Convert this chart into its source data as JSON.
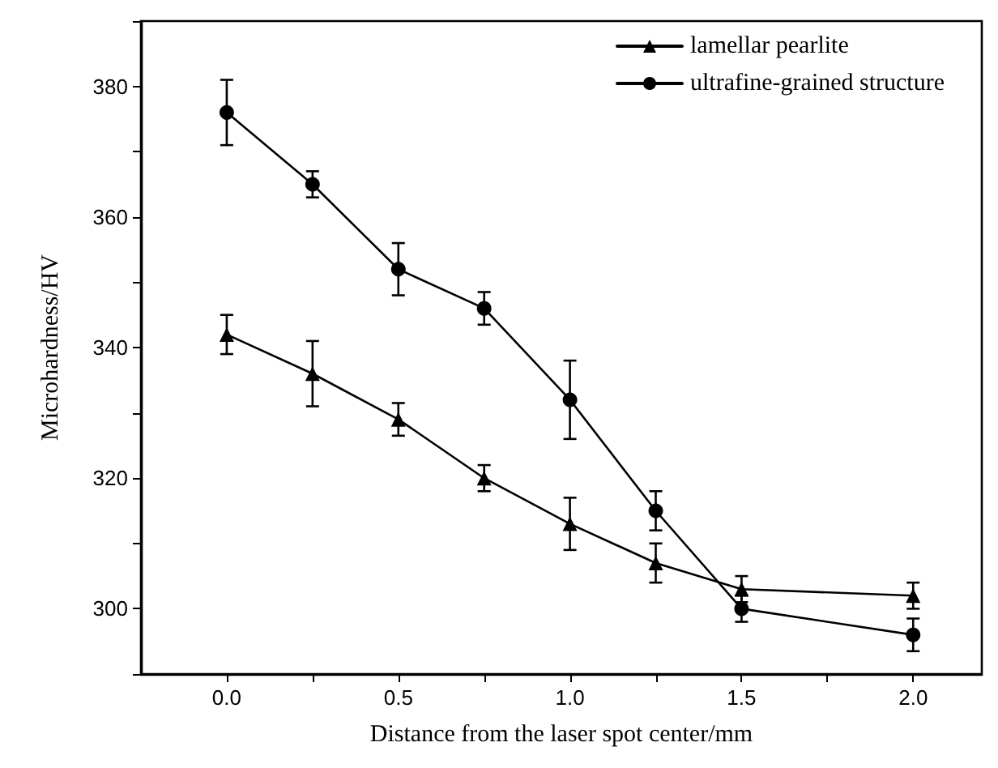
{
  "chart_data": {
    "type": "line",
    "xlabel": "Distance from the laser spot center/mm",
    "ylabel": "Microhardness/HV",
    "x": [
      0,
      0.25,
      0.5,
      0.75,
      1.0,
      1.25,
      1.5,
      2.0
    ],
    "series": [
      {
        "name": "lamellar pearlite",
        "color": "#000000",
        "marker": "triangle",
        "values": [
          342,
          336,
          329,
          320,
          313,
          307,
          303,
          302
        ],
        "errors": [
          3,
          5,
          2.5,
          2,
          4,
          3,
          2,
          2
        ]
      },
      {
        "name": "ultrafine-grained structure",
        "color": "#000000",
        "marker": "circle",
        "values": [
          376,
          365,
          352,
          346,
          332,
          315,
          300,
          296
        ],
        "errors": [
          5,
          2,
          4,
          2.5,
          6,
          3,
          2,
          2.5
        ]
      }
    ],
    "xlim": [
      -0.25,
      2.2
    ],
    "xticks": [
      {
        "value": 0,
        "label": "0.0"
      },
      {
        "value": 0.25,
        "label": null
      },
      {
        "value": 0.5,
        "label": "0.5"
      },
      {
        "value": 0.75,
        "label": null
      },
      {
        "value": 1,
        "label": "1.0"
      },
      {
        "value": 1.25,
        "label": null
      },
      {
        "value": 1.5,
        "label": "1.5"
      },
      {
        "value": 1.75,
        "label": null
      },
      {
        "value": 2,
        "label": "2.0"
      }
    ],
    "ylim": [
      290,
      390
    ],
    "yticks": [
      {
        "value": 290,
        "label": null
      },
      300,
      {
        "value": 310,
        "label": null
      },
      320,
      {
        "value": 330,
        "label": null
      },
      340,
      {
        "value": 350,
        "label": null
      },
      360,
      {
        "value": 370,
        "label": null
      },
      380,
      {
        "value": 390,
        "label": null
      }
    ],
    "grid": false,
    "legend": "top right",
    "line_style": "solid"
  }
}
